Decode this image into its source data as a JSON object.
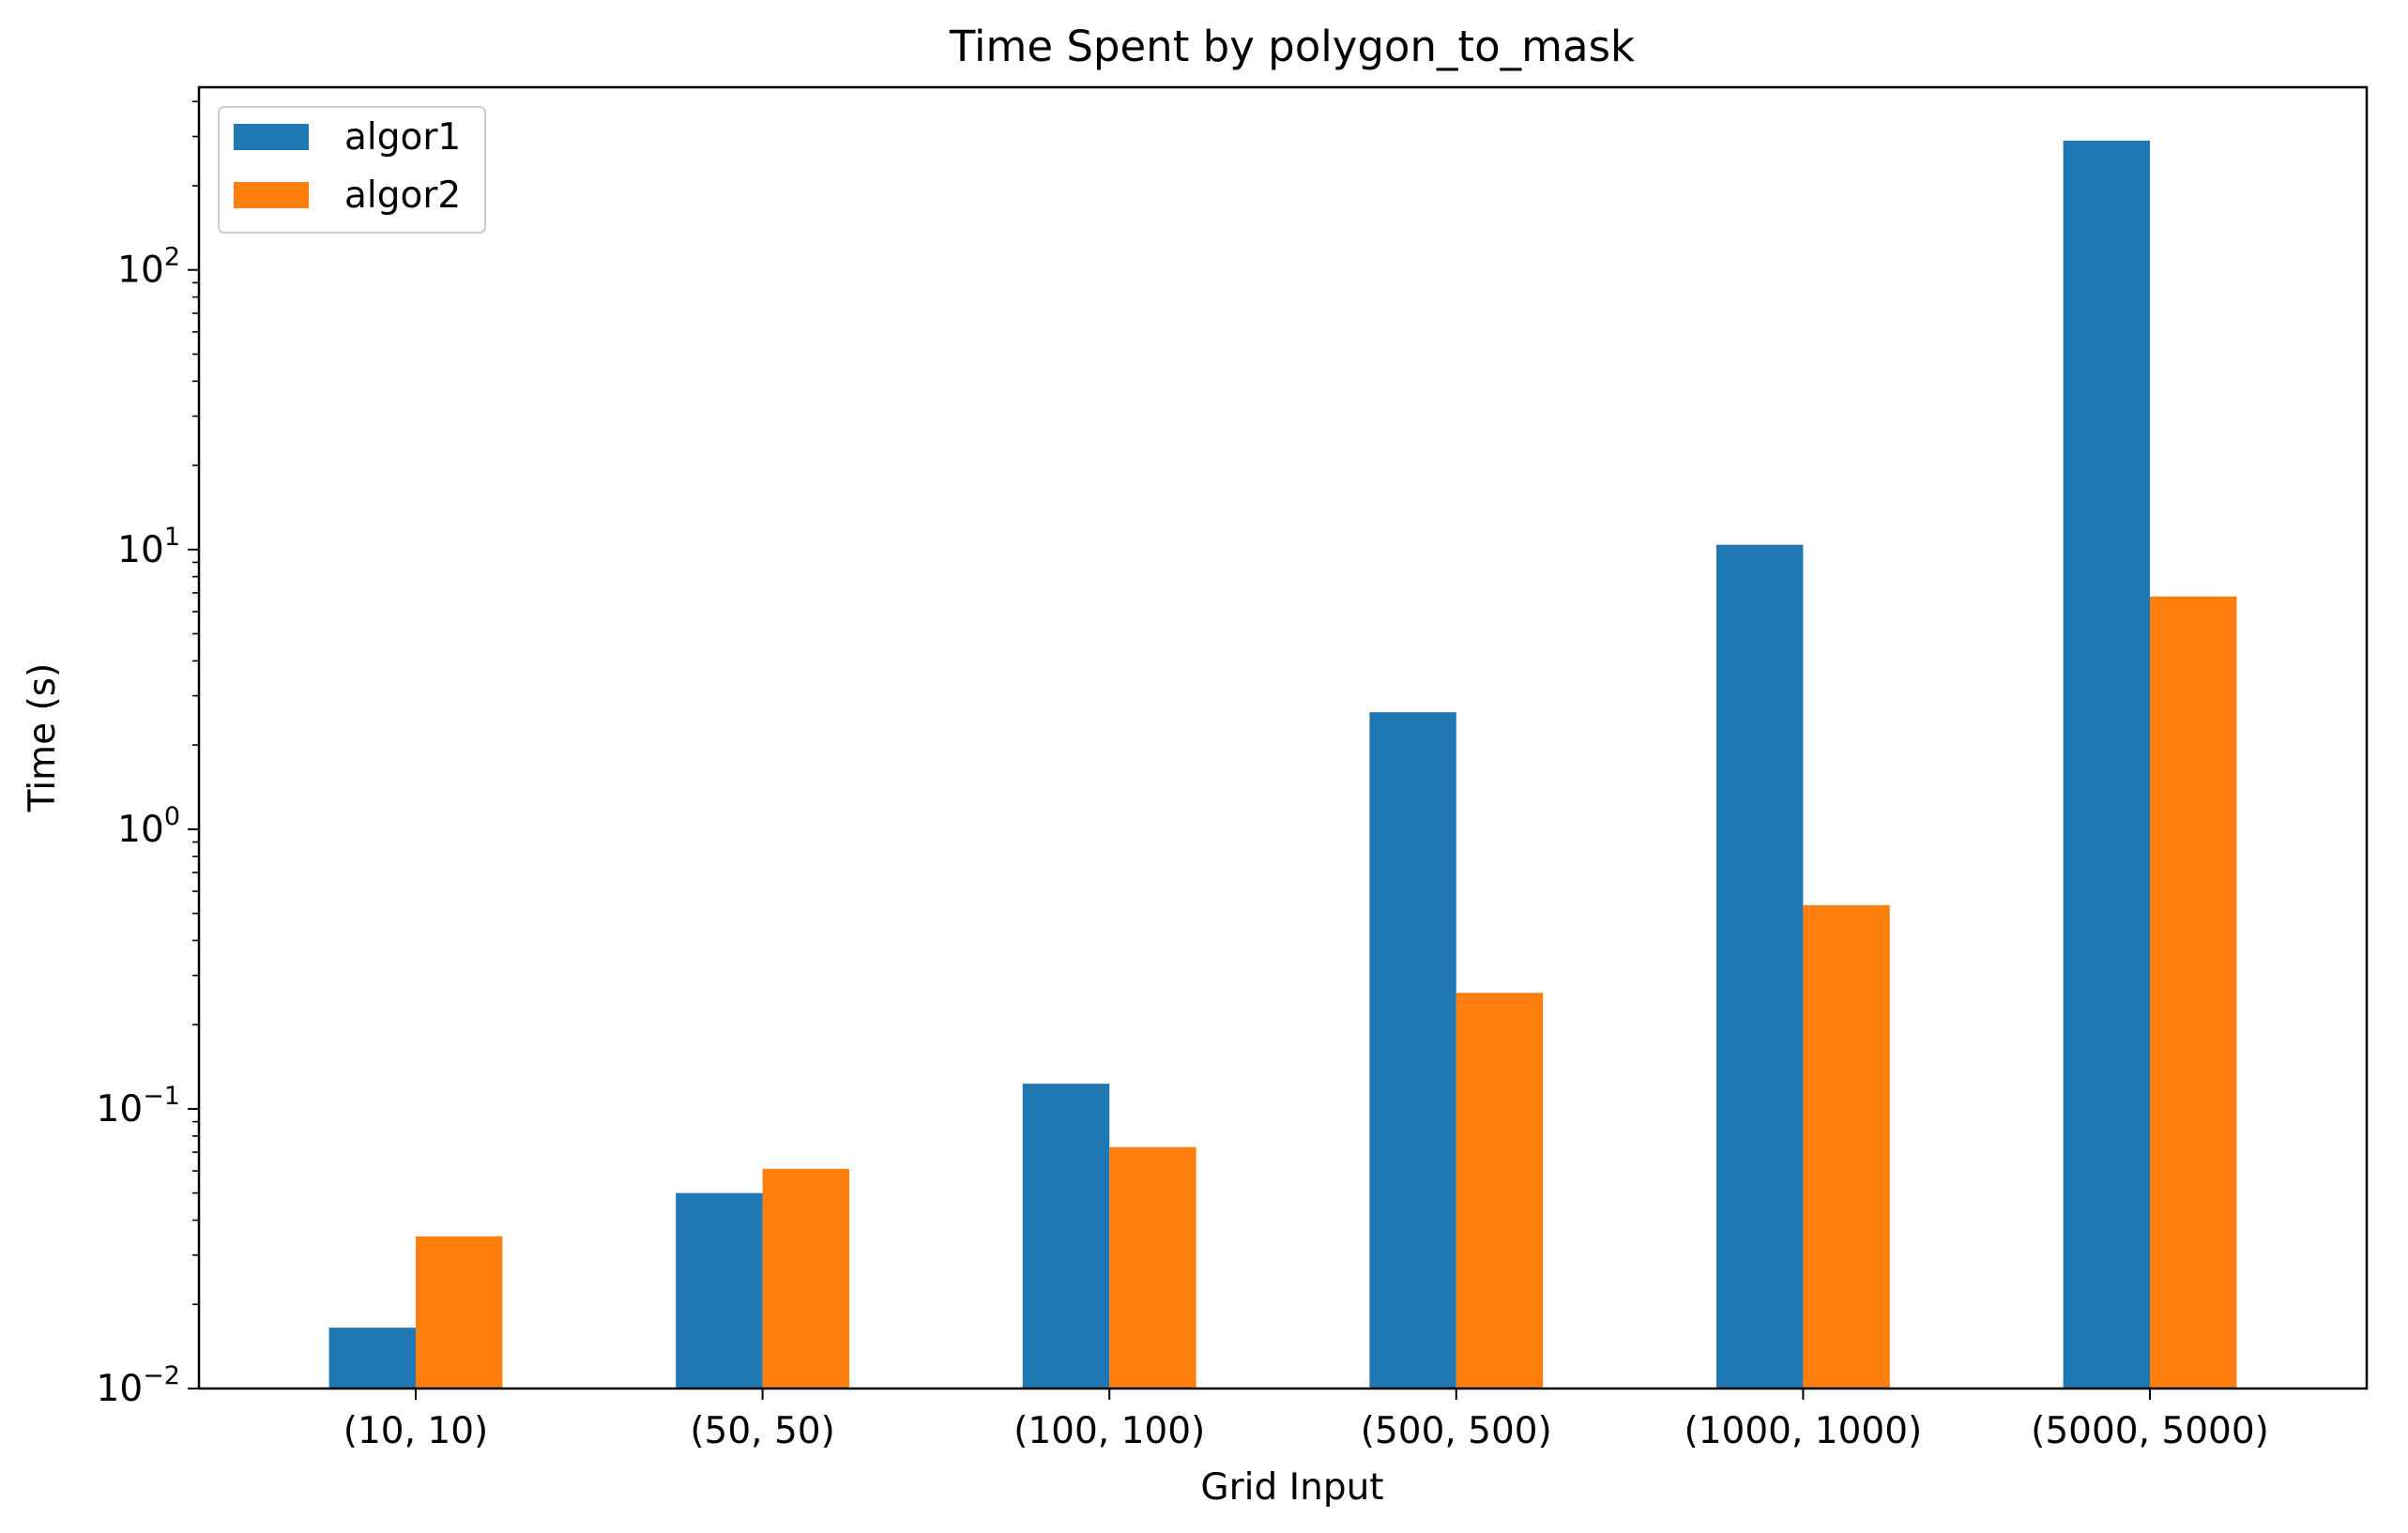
{
  "chart_data": {
    "type": "bar",
    "title": "Time Spent by polygon_to_mask",
    "xlabel": "Grid Input",
    "ylabel": "Time (s)",
    "yscale": "log",
    "ylim": [
      0.01,
      450
    ],
    "grid": false,
    "legend_position": "top-left",
    "categories": [
      "(10, 10)",
      "(50, 50)",
      "(100, 100)",
      "(500, 500)",
      "(1000, 1000)",
      "(5000, 5000)"
    ],
    "series": [
      {
        "name": "algor1",
        "color": "#1f77b4",
        "values": [
          0.0165,
          0.05,
          0.123,
          2.62,
          10.4,
          290
        ]
      },
      {
        "name": "algor2",
        "color": "#ff7f0e",
        "values": [
          0.035,
          0.061,
          0.073,
          0.26,
          0.535,
          6.8
        ]
      }
    ],
    "y_ticks": [
      {
        "base": "10",
        "exp": "−2",
        "value": 0.01
      },
      {
        "base": "10",
        "exp": "−1",
        "value": 0.1
      },
      {
        "base": "10",
        "exp": "0",
        "value": 1
      },
      {
        "base": "10",
        "exp": "1",
        "value": 10
      },
      {
        "base": "10",
        "exp": "2",
        "value": 100
      }
    ]
  }
}
